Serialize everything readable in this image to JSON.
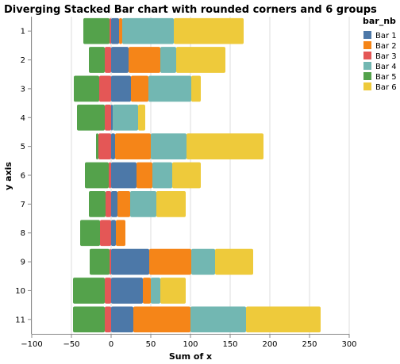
{
  "chart_data": {
    "type": "bar",
    "orientation": "horizontal",
    "stacked": "diverging",
    "title": "Diverging Stacked Bar chart with rounded corners and 6 groups",
    "xlabel": "Sum of x",
    "ylabel": "y axis",
    "xlim": [
      -100,
      300
    ],
    "x_ticks": [
      -100,
      -50,
      0,
      50,
      100,
      150,
      200,
      250,
      300
    ],
    "categories": [
      "1",
      "2",
      "3",
      "4",
      "5",
      "6",
      "7",
      "8",
      "9",
      "10",
      "11"
    ],
    "grid": "vertical",
    "legend": {
      "title": "bar_nb",
      "position": "right"
    },
    "series": [
      {
        "name": "Bar 1",
        "color": "#4c78a8",
        "values": [
          10,
          22,
          25,
          2,
          5,
          32,
          8,
          6,
          48,
          40,
          28
        ]
      },
      {
        "name": "Bar 2",
        "color": "#f58518",
        "values": [
          4,
          40,
          22,
          0,
          45,
          20,
          16,
          12,
          53,
          10,
          72
        ]
      },
      {
        "name": "Bar 3",
        "color": "#e45756",
        "values": [
          -2,
          -8,
          -15,
          -8,
          -16,
          -3,
          -7,
          -14,
          -2,
          -8,
          -8
        ]
      },
      {
        "name": "Bar 4",
        "color": "#72b7b2",
        "values": [
          65,
          20,
          54,
          32,
          45,
          25,
          33,
          0,
          30,
          12,
          70
        ]
      },
      {
        "name": "Bar 5",
        "color": "#54a24b",
        "values": [
          -33,
          -20,
          -32,
          -35,
          -3,
          -30,
          -21,
          -25,
          -25,
          -40,
          -40
        ]
      },
      {
        "name": "Bar 6",
        "color": "#eeca3b",
        "values": [
          88,
          62,
          12,
          9,
          97,
          36,
          37,
          0,
          48,
          32,
          94
        ]
      }
    ]
  }
}
